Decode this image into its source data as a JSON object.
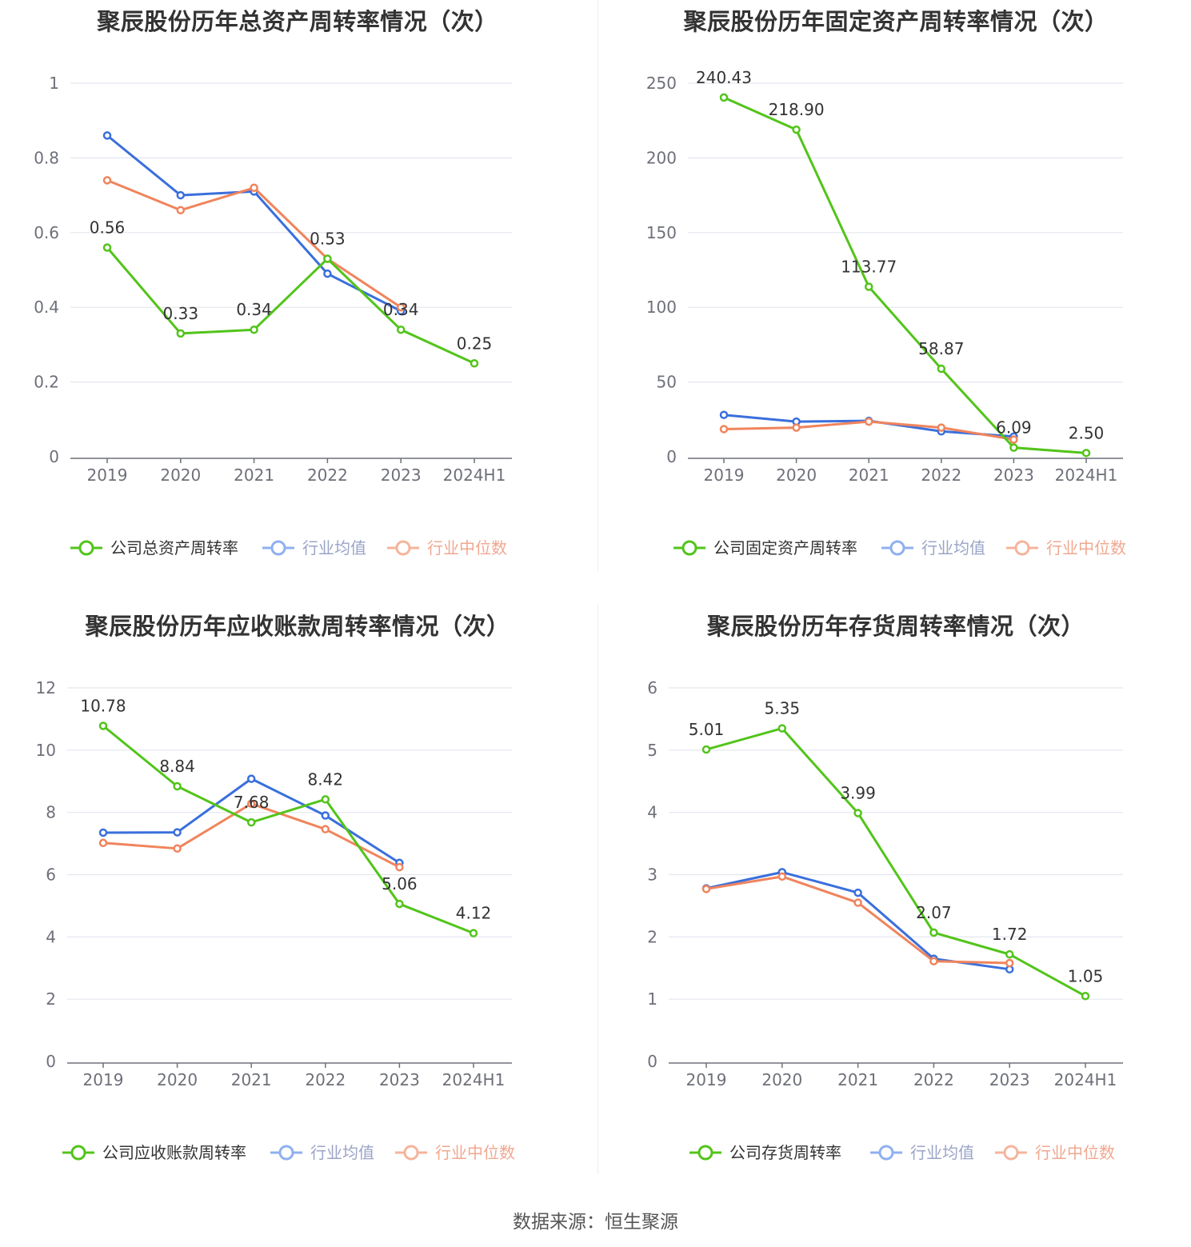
{
  "colors": {
    "company": "#52c41a",
    "average": "#3a6fdc",
    "median": "#f0845c",
    "grid": "#e3e6ef",
    "axis": "#6e7079",
    "legend_avg_text": "#9aa4c7",
    "legend_med_text": "#f0a890",
    "legend_company_text": "#333333"
  },
  "source_text": "数据来源：恒生聚源",
  "chart_data": [
    {
      "type": "line",
      "title": "聚辰股份历年总资产周转率情况（次）",
      "categories": [
        "2019",
        "2020",
        "2021",
        "2022",
        "2023",
        "2024H1"
      ],
      "yticks": [
        "0",
        "0.2",
        "0.4",
        "0.6",
        "0.8",
        "1"
      ],
      "ylim": [
        0,
        1
      ],
      "series": [
        {
          "name": "公司总资产周转率",
          "key": "company",
          "values": [
            0.56,
            0.33,
            0.34,
            0.53,
            0.34,
            0.25
          ],
          "labels": [
            "0.56",
            "0.33",
            "0.34",
            "0.53",
            "0.34",
            "0.25"
          ]
        },
        {
          "name": "行业均值",
          "key": "average",
          "values": [
            0.86,
            0.7,
            0.71,
            0.49,
            0.39,
            null
          ]
        },
        {
          "name": "行业中位数",
          "key": "median",
          "values": [
            0.74,
            0.66,
            0.72,
            0.53,
            0.4,
            null
          ]
        }
      ]
    },
    {
      "type": "line",
      "title": "聚辰股份历年固定资产周转率情况（次）",
      "categories": [
        "2019",
        "2020",
        "2021",
        "2022",
        "2023",
        "2024H1"
      ],
      "yticks": [
        "0",
        "50",
        "100",
        "150",
        "200",
        "250"
      ],
      "ylim": [
        0,
        250
      ],
      "series": [
        {
          "name": "公司固定资产周转率",
          "key": "company",
          "values": [
            240.43,
            218.9,
            113.77,
            58.87,
            6.09,
            2.5
          ],
          "labels": [
            "240.43",
            "218.90",
            "113.77",
            "58.87",
            "6.09",
            "2.50"
          ]
        },
        {
          "name": "行业均值",
          "key": "average",
          "values": [
            28,
            23.5,
            24,
            17,
            13.5,
            null
          ]
        },
        {
          "name": "行业中位数",
          "key": "median",
          "values": [
            18.5,
            19.5,
            23.5,
            19.5,
            11.5,
            null
          ]
        }
      ]
    },
    {
      "type": "line",
      "title": "聚辰股份历年应收账款周转率情况（次）",
      "categories": [
        "2019",
        "2020",
        "2021",
        "2022",
        "2023",
        "2024H1"
      ],
      "yticks": [
        "0",
        "2",
        "4",
        "6",
        "8",
        "10",
        "12"
      ],
      "ylim": [
        0,
        12
      ],
      "series": [
        {
          "name": "公司应收账款周转率",
          "key": "company",
          "values": [
            10.78,
            8.84,
            7.68,
            8.42,
            5.06,
            4.12
          ],
          "labels": [
            "10.78",
            "8.84",
            "7.68",
            "8.42",
            "5.06",
            "4.12"
          ]
        },
        {
          "name": "行业均值",
          "key": "average",
          "values": [
            7.35,
            7.36,
            9.08,
            7.9,
            6.38,
            null
          ]
        },
        {
          "name": "行业中位数",
          "key": "median",
          "values": [
            7.02,
            6.84,
            8.28,
            7.46,
            6.24,
            null
          ]
        }
      ]
    },
    {
      "type": "line",
      "title": "聚辰股份历年存货周转率情况（次）",
      "categories": [
        "2019",
        "2020",
        "2021",
        "2022",
        "2023",
        "2024H1"
      ],
      "yticks": [
        "0",
        "1",
        "2",
        "3",
        "4",
        "5",
        "6"
      ],
      "ylim": [
        0,
        6
      ],
      "series": [
        {
          "name": "公司存货周转率",
          "key": "company",
          "values": [
            5.01,
            5.35,
            3.99,
            2.07,
            1.72,
            1.05
          ],
          "labels": [
            "5.01",
            "5.35",
            "3.99",
            "2.07",
            "1.72",
            "1.05"
          ]
        },
        {
          "name": "行业均值",
          "key": "average",
          "values": [
            2.78,
            3.04,
            2.71,
            1.65,
            1.48,
            null
          ]
        },
        {
          "name": "行业中位数",
          "key": "median",
          "values": [
            2.77,
            2.97,
            2.55,
            1.61,
            1.58,
            null
          ]
        }
      ]
    }
  ]
}
